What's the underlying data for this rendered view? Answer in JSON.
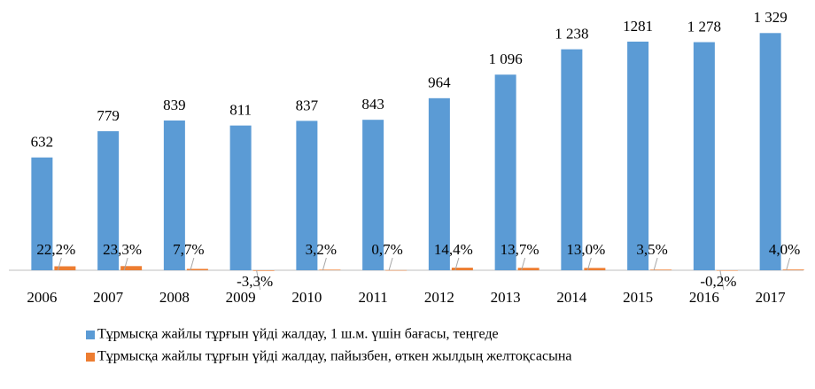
{
  "chart_data": {
    "type": "bar",
    "categories": [
      "2006",
      "2007",
      "2008",
      "2009",
      "2010",
      "2011",
      "2012",
      "2013",
      "2014",
      "2015",
      "2016",
      "2017"
    ],
    "series": [
      {
        "name": "Тұрмысқа жайлы тұрғын үйді жалдау, 1 ш.м. үшін бағасы, теңгеде",
        "color": "#5b9bd5",
        "values": [
          632,
          779,
          839,
          811,
          837,
          843,
          964,
          1096,
          1238,
          1281,
          1278,
          1329
        ],
        "value_labels": [
          "632",
          "779",
          "839",
          "811",
          "837",
          "843",
          "964",
          "1 096",
          "1 238",
          "1281",
          "1 278",
          "1 329"
        ]
      },
      {
        "name": "Тұрмысқа жайлы тұрғын үйді жалдау, пайызбен, өткен жылдың желтоқсасына",
        "color": "#ed7d31",
        "values": [
          22.2,
          23.3,
          7.7,
          -3.3,
          3.2,
          0.7,
          14.4,
          13.7,
          13.0,
          3.5,
          -0.2,
          4.0
        ],
        "value_labels": [
          "22,2%",
          "23,3%",
          "7,7%",
          "-3,3%",
          "3,2%",
          "0,7%",
          "14,4%",
          "13,7%",
          "13,0%",
          "3,5%",
          "-0,2%",
          "4,0%"
        ]
      }
    ],
    "ylim": [
      0,
      1400
    ],
    "legend": "bottom"
  }
}
